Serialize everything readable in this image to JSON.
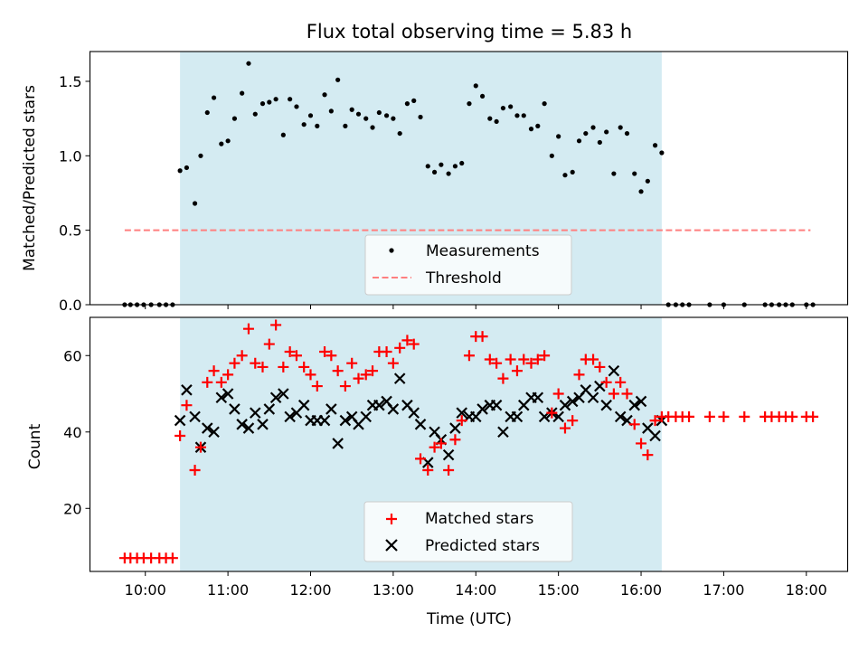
{
  "title": "Flux total observing time = 5.83 h",
  "colors": {
    "span": "#add8e6",
    "matched": "#ff0000",
    "predicted": "#000000",
    "threshold": "#ff7f7f",
    "measurement": "#000000"
  },
  "chart_data": [
    {
      "type": "scatter",
      "ylabel": "Matched/Predicted stars",
      "xlim": [
        9.33,
        18.5
      ],
      "ylim": [
        0,
        1.7
      ],
      "yticks": [
        0.0,
        0.5,
        1.0,
        1.5
      ],
      "ytick_labels": [
        "0.0",
        "0.5",
        "1.0",
        "1.5"
      ],
      "shaded_span": [
        10.42,
        16.25
      ],
      "threshold": {
        "name": "Threshold",
        "value": 0.5,
        "x_range": [
          9.75,
          18.05
        ]
      },
      "legend": {
        "placement": "lower-center",
        "entries": [
          "Measurements",
          "Threshold"
        ]
      },
      "series": [
        {
          "name": "Measurements",
          "x": [
            9.75,
            9.82,
            9.9,
            9.98,
            10.07,
            10.17,
            10.25,
            10.33,
            10.42,
            10.5,
            10.6,
            10.67,
            10.75,
            10.83,
            10.92,
            11.0,
            11.08,
            11.17,
            11.25,
            11.33,
            11.42,
            11.5,
            11.58,
            11.67,
            11.75,
            11.83,
            11.92,
            12.0,
            12.08,
            12.17,
            12.25,
            12.33,
            12.42,
            12.5,
            12.58,
            12.67,
            12.75,
            12.83,
            12.92,
            13.0,
            13.08,
            13.17,
            13.25,
            13.33,
            13.42,
            13.5,
            13.58,
            13.67,
            13.75,
            13.83,
            13.92,
            14.0,
            14.08,
            14.17,
            14.25,
            14.33,
            14.42,
            14.5,
            14.58,
            14.67,
            14.75,
            14.83,
            14.92,
            15.0,
            15.08,
            15.17,
            15.25,
            15.33,
            15.42,
            15.5,
            15.58,
            15.67,
            15.75,
            15.83,
            15.92,
            16.0,
            16.08,
            16.17,
            16.25,
            16.33,
            16.42,
            16.5,
            16.58,
            16.83,
            17.0,
            17.25,
            17.5,
            17.58,
            17.67,
            17.75,
            17.83,
            18.0,
            18.08
          ],
          "y": [
            0,
            0,
            0,
            0,
            0,
            0,
            0,
            0,
            0.9,
            0.92,
            0.68,
            1.0,
            1.29,
            1.39,
            1.08,
            1.1,
            1.25,
            1.42,
            1.62,
            1.28,
            1.35,
            1.36,
            1.38,
            1.14,
            1.38,
            1.33,
            1.21,
            1.27,
            1.2,
            1.41,
            1.3,
            1.51,
            1.2,
            1.31,
            1.28,
            1.25,
            1.19,
            1.29,
            1.27,
            1.25,
            1.15,
            1.35,
            1.37,
            1.26,
            0.93,
            0.89,
            0.94,
            0.88,
            0.93,
            0.95,
            1.35,
            1.47,
            1.4,
            1.25,
            1.23,
            1.32,
            1.33,
            1.27,
            1.27,
            1.18,
            1.2,
            1.35,
            1.0,
            1.13,
            0.87,
            0.89,
            1.1,
            1.15,
            1.19,
            1.09,
            1.16,
            0.88,
            1.19,
            1.15,
            0.88,
            0.76,
            0.83,
            1.07,
            1.02,
            0,
            0,
            0,
            0,
            0,
            0,
            0,
            0,
            0,
            0,
            0,
            0,
            0,
            0
          ]
        }
      ]
    },
    {
      "type": "scatter",
      "xlabel": "Time (UTC)",
      "ylabel": "Count",
      "xlim": [
        9.33,
        18.5
      ],
      "ylim": [
        3.5,
        70
      ],
      "xticks": [
        10,
        11,
        12,
        13,
        14,
        15,
        16,
        17,
        18
      ],
      "xtick_labels": [
        "10:00",
        "11:00",
        "12:00",
        "13:00",
        "14:00",
        "15:00",
        "16:00",
        "17:00",
        "18:00"
      ],
      "yticks": [
        20,
        40,
        60
      ],
      "ytick_labels": [
        "20",
        "40",
        "60"
      ],
      "shaded_span": [
        10.42,
        16.25
      ],
      "legend": {
        "placement": "lower-center",
        "entries": [
          "Matched stars",
          "Predicted stars"
        ]
      },
      "series": [
        {
          "name": "Matched stars",
          "marker": "plus",
          "x": [
            9.75,
            9.82,
            9.9,
            9.98,
            10.07,
            10.17,
            10.25,
            10.33,
            10.42,
            10.5,
            10.6,
            10.67,
            10.75,
            10.83,
            10.92,
            11.0,
            11.08,
            11.17,
            11.25,
            11.33,
            11.42,
            11.5,
            11.58,
            11.67,
            11.75,
            11.83,
            11.92,
            12.0,
            12.08,
            12.17,
            12.25,
            12.33,
            12.42,
            12.5,
            12.58,
            12.67,
            12.75,
            12.83,
            12.92,
            13.0,
            13.08,
            13.17,
            13.25,
            13.33,
            13.42,
            13.5,
            13.58,
            13.67,
            13.75,
            13.83,
            13.92,
            14.0,
            14.08,
            14.17,
            14.25,
            14.33,
            14.42,
            14.5,
            14.58,
            14.67,
            14.75,
            14.83,
            14.92,
            15.0,
            15.08,
            15.17,
            15.25,
            15.33,
            15.42,
            15.5,
            15.58,
            15.67,
            15.75,
            15.83,
            15.92,
            16.0,
            16.08,
            16.17,
            16.25,
            16.33,
            16.42,
            16.5,
            16.58,
            16.83,
            17.0,
            17.25,
            17.5,
            17.58,
            17.67,
            17.75,
            17.83,
            18.0,
            18.08
          ],
          "y": [
            7,
            7,
            7,
            7,
            7,
            7,
            7,
            7,
            39,
            47,
            30,
            36,
            53,
            56,
            53,
            55,
            58,
            60,
            67,
            58,
            57,
            63,
            68,
            57,
            61,
            60,
            57,
            55,
            52,
            61,
            60,
            56,
            52,
            58,
            54,
            55,
            56,
            61,
            61,
            58,
            62,
            64,
            63,
            33,
            30,
            36,
            37,
            30,
            38,
            43,
            60,
            65,
            65,
            59,
            58,
            54,
            59,
            56,
            59,
            58,
            59,
            60,
            45,
            50,
            41,
            43,
            55,
            59,
            59,
            57,
            53,
            50,
            53,
            50,
            42,
            37,
            34,
            43,
            44,
            44,
            44,
            44,
            44,
            44,
            44,
            44,
            44,
            44,
            44,
            44,
            44,
            44,
            44
          ]
        },
        {
          "name": "Predicted stars",
          "marker": "x",
          "x": [
            10.42,
            10.5,
            10.6,
            10.67,
            10.75,
            10.83,
            10.92,
            11.0,
            11.08,
            11.17,
            11.25,
            11.33,
            11.42,
            11.5,
            11.58,
            11.67,
            11.75,
            11.83,
            11.92,
            12.0,
            12.08,
            12.17,
            12.25,
            12.33,
            12.42,
            12.5,
            12.58,
            12.67,
            12.75,
            12.83,
            12.92,
            13.0,
            13.08,
            13.17,
            13.25,
            13.33,
            13.42,
            13.5,
            13.58,
            13.67,
            13.75,
            13.83,
            13.92,
            14.0,
            14.08,
            14.17,
            14.25,
            14.33,
            14.42,
            14.5,
            14.58,
            14.67,
            14.75,
            14.83,
            14.92,
            15.0,
            15.08,
            15.17,
            15.25,
            15.33,
            15.42,
            15.5,
            15.58,
            15.67,
            15.75,
            15.83,
            15.92,
            16.0,
            16.08,
            16.17,
            16.25
          ],
          "y": [
            43,
            51,
            44,
            36,
            41,
            40,
            49,
            50,
            46,
            42,
            41,
            45,
            42,
            46,
            49,
            50,
            44,
            45,
            47,
            43,
            43,
            43,
            46,
            37,
            43,
            44,
            42,
            44,
            47,
            47,
            48,
            46,
            54,
            47,
            45,
            42,
            32,
            40,
            38,
            34,
            41,
            45,
            44,
            44,
            46,
            47,
            47,
            40,
            44,
            44,
            47,
            49,
            49,
            44,
            45,
            44,
            47,
            48,
            49,
            51,
            49,
            52,
            47,
            56,
            44,
            43,
            47,
            48,
            41,
            39,
            43
          ]
        }
      ]
    }
  ]
}
